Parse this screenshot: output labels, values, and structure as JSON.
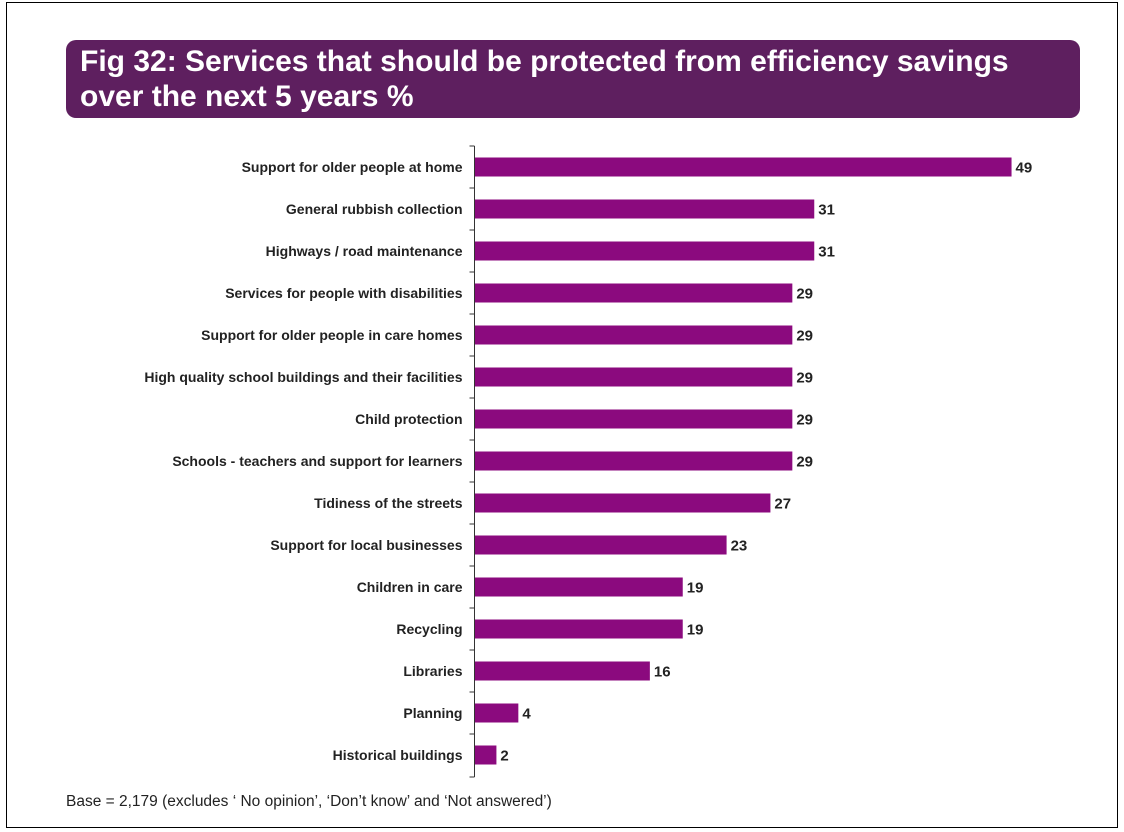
{
  "chart_data": {
    "type": "bar",
    "orientation": "horizontal",
    "title": "Fig 32: Services that should be protected from efficiency savings over the next 5 years %",
    "categories": [
      "Support for older people at home",
      "General rubbish collection",
      "Highways / road maintenance",
      "Services for people with disabilities",
      "Support for older people in care homes",
      "High quality school buildings and their facilities",
      "Child protection",
      "Schools - teachers and support for learners",
      "Tidiness of the streets",
      "Support for local businesses",
      "Children in care",
      "Recycling",
      "Libraries",
      "Planning",
      "Historical buildings"
    ],
    "values": [
      49,
      31,
      31,
      29,
      29,
      29,
      29,
      29,
      27,
      23,
      19,
      19,
      16,
      4,
      2
    ],
    "xlim": [
      0,
      50
    ],
    "grid": false,
    "bar_color": "#8b0a7e",
    "title_banner_color": "#5e1f5f"
  },
  "footnote": "Base = 2,179 (excludes ‘ No opinion’, ‘Don’t know’ and ‘Not answered’)"
}
